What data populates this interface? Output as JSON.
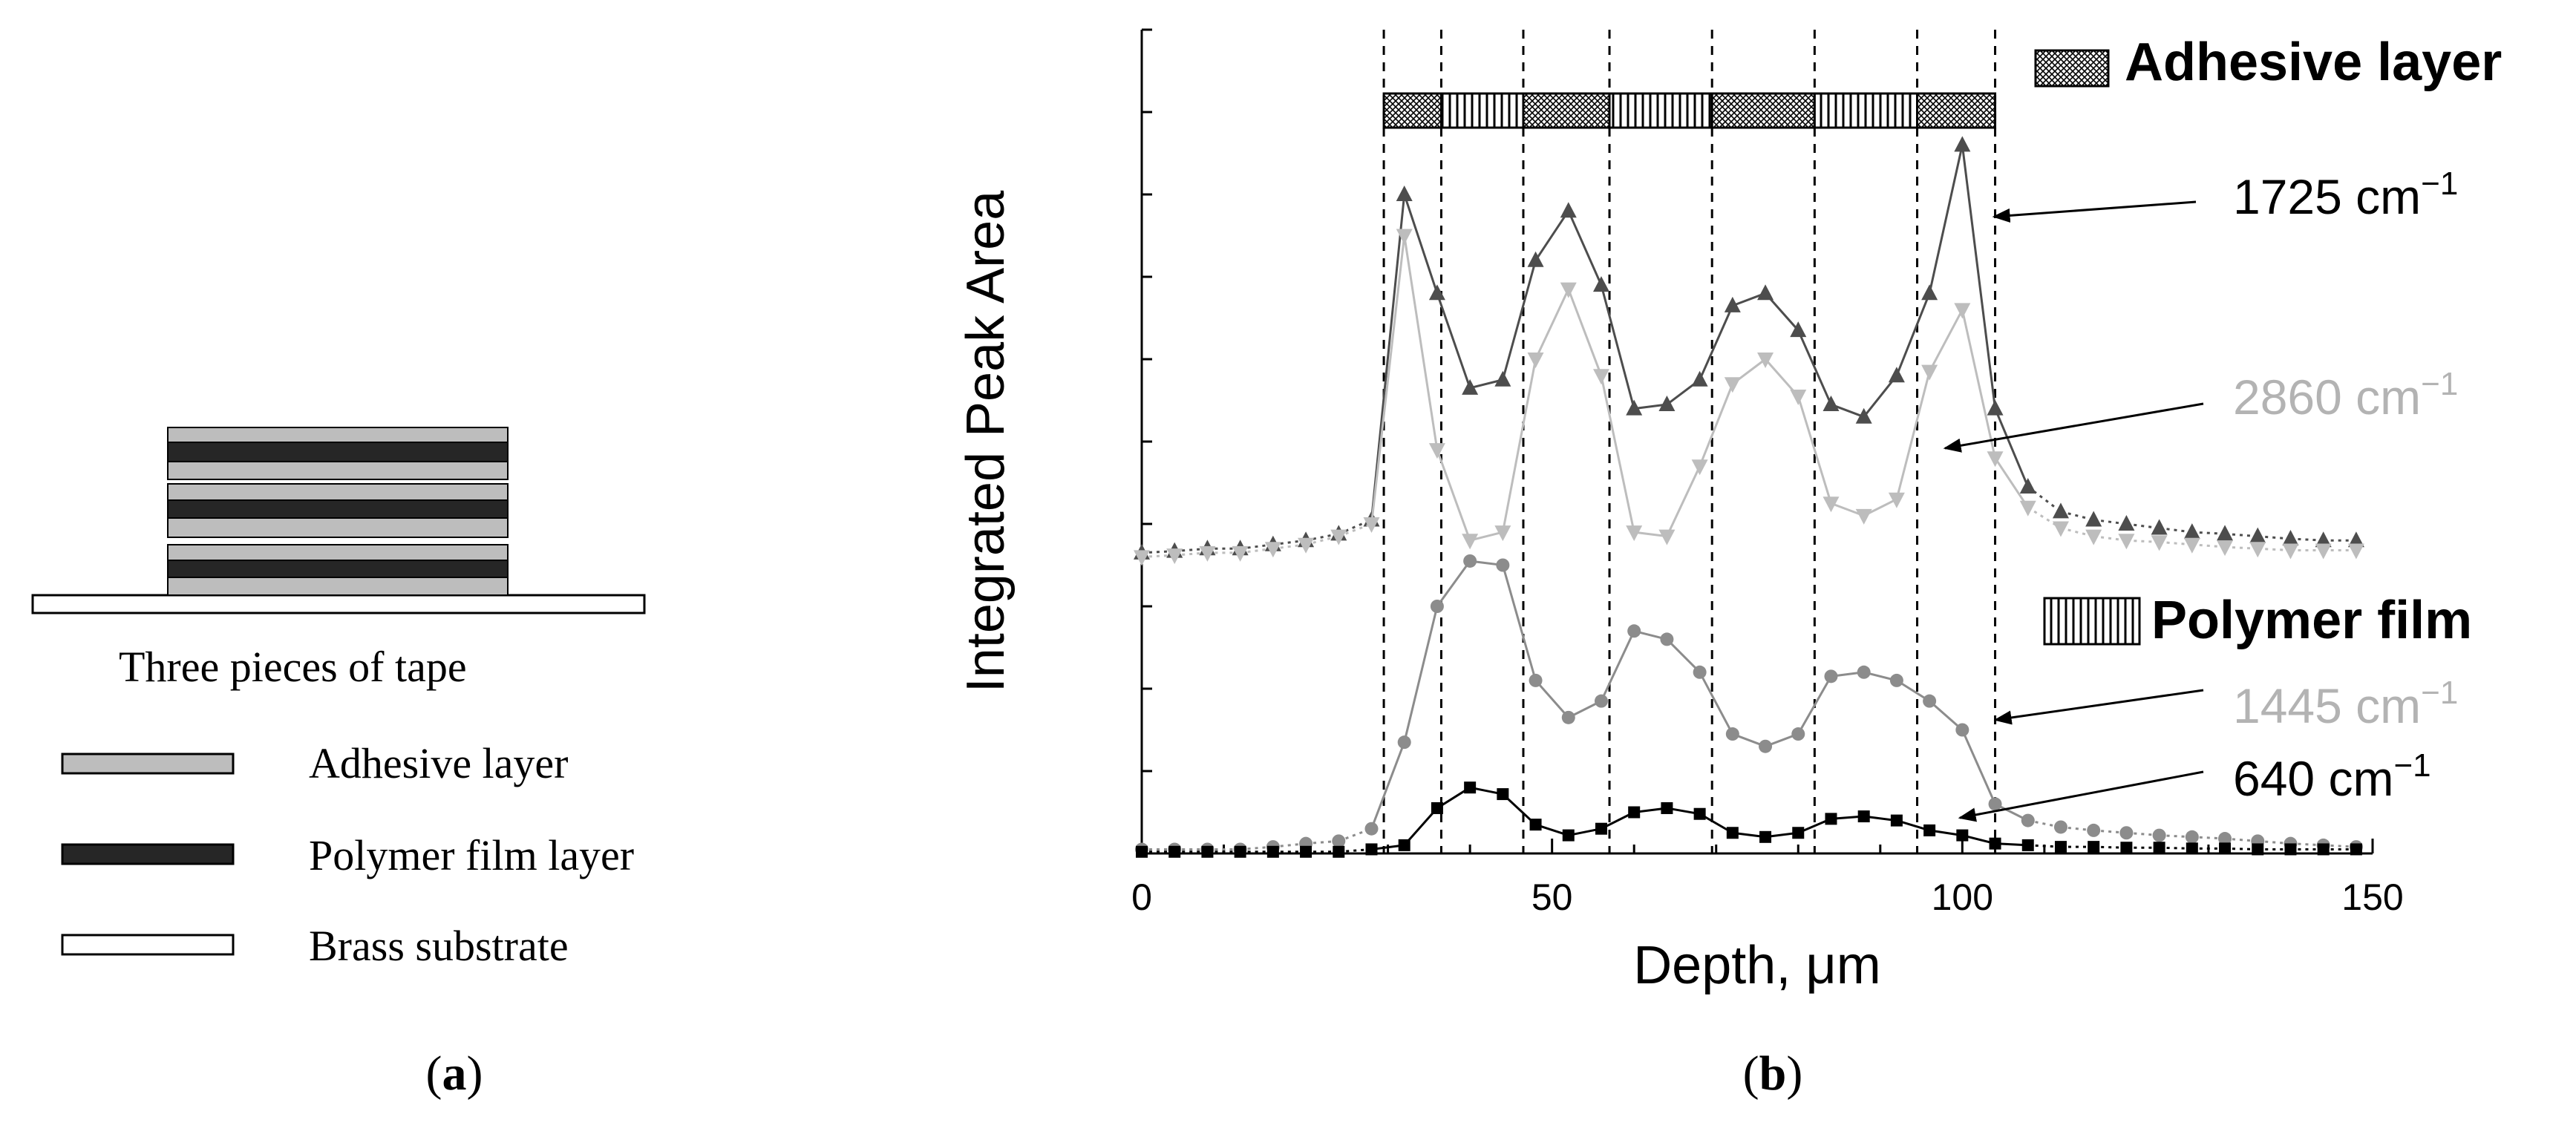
{
  "panel_a": {
    "caption": "Three pieces of tape",
    "legend": [
      {
        "label": "Adhesive layer",
        "fill": "#bdbdbd"
      },
      {
        "label": "Polymer film layer",
        "fill": "#262626"
      },
      {
        "label": "Brass substrate",
        "fill": "#ffffff"
      }
    ],
    "tag": "a"
  },
  "panel_b": {
    "tag": "b",
    "layer_legend": {
      "adhesive": "Adhesive layer",
      "polymer": "Polymer film"
    },
    "peak_labels": {
      "p1725": {
        "main": "1725 cm",
        "sup": "−1",
        "color": "#000000"
      },
      "p2860": {
        "main": "2860 cm",
        "sup": "−1",
        "color": "#b3b3b3"
      },
      "p1445": {
        "main": "1445 cm",
        "sup": "−1",
        "color": "#b3b3b3"
      },
      "p640": {
        "main": "640 cm",
        "sup": "−1",
        "color": "#000000"
      }
    }
  },
  "chart_data": {
    "type": "line",
    "xlabel": "Depth, μm",
    "ylabel": "Integrated Peak Area",
    "xlim": [
      0,
      150
    ],
    "ylim": [
      0,
      10
    ],
    "xticks": [
      0,
      50,
      100,
      150
    ],
    "yticks_minor_count": 10,
    "boundaries": [
      29.5,
      36.5,
      46.5,
      57,
      69.5,
      82,
      94.5,
      104
    ],
    "layer_bar": [
      {
        "type": "adhesive",
        "from": 29.5,
        "to": 36.5
      },
      {
        "type": "polymer",
        "from": 36.5,
        "to": 46.5
      },
      {
        "type": "adhesive",
        "from": 46.5,
        "to": 57
      },
      {
        "type": "polymer",
        "from": 57,
        "to": 69.5
      },
      {
        "type": "adhesive",
        "from": 69.5,
        "to": 82
      },
      {
        "type": "polymer",
        "from": 82,
        "to": 94.5
      },
      {
        "type": "adhesive",
        "from": 94.5,
        "to": 104
      }
    ],
    "series": [
      {
        "name": "1725 cm-1",
        "marker": "triangle-up",
        "color": "#4d4d4d",
        "x": [
          0,
          4,
          8,
          12,
          16,
          20,
          24,
          28,
          32,
          36,
          40,
          44,
          48,
          52,
          56,
          60,
          64,
          68,
          72,
          76,
          80,
          84,
          88,
          92,
          96,
          100,
          104,
          108,
          112,
          116,
          120,
          124,
          128,
          132,
          136,
          140,
          144,
          148
        ],
        "values": [
          3.65,
          3.67,
          3.7,
          3.7,
          3.75,
          3.8,
          3.88,
          4.05,
          8.0,
          6.8,
          5.65,
          5.75,
          7.2,
          7.8,
          6.9,
          5.4,
          5.45,
          5.75,
          6.65,
          6.8,
          6.35,
          5.45,
          5.3,
          5.8,
          6.8,
          8.6,
          5.4,
          4.45,
          4.15,
          4.05,
          4.0,
          3.95,
          3.9,
          3.88,
          3.85,
          3.82,
          3.8,
          3.8
        ]
      },
      {
        "name": "2860 cm-1",
        "marker": "triangle-down",
        "color": "#bdbdbd",
        "x": [
          0,
          4,
          8,
          12,
          16,
          20,
          24,
          28,
          32,
          36,
          40,
          44,
          48,
          52,
          56,
          60,
          64,
          68,
          72,
          76,
          80,
          84,
          88,
          92,
          96,
          100,
          104,
          108,
          112,
          116,
          120,
          124,
          128,
          132,
          136,
          140,
          144,
          148
        ],
        "values": [
          3.6,
          3.62,
          3.65,
          3.65,
          3.7,
          3.75,
          3.85,
          4.0,
          7.5,
          4.9,
          3.8,
          3.9,
          6.0,
          6.85,
          5.8,
          3.9,
          3.85,
          4.7,
          5.7,
          6.0,
          5.55,
          4.25,
          4.1,
          4.3,
          5.85,
          6.6,
          4.8,
          4.2,
          3.95,
          3.85,
          3.8,
          3.78,
          3.75,
          3.72,
          3.7,
          3.68,
          3.68,
          3.68
        ]
      },
      {
        "name": "1445 cm-1",
        "marker": "circle",
        "color": "#8c8c8c",
        "x": [
          0,
          4,
          8,
          12,
          16,
          20,
          24,
          28,
          32,
          36,
          40,
          44,
          48,
          52,
          56,
          60,
          64,
          68,
          72,
          76,
          80,
          84,
          88,
          92,
          96,
          100,
          104,
          108,
          112,
          116,
          120,
          124,
          128,
          132,
          136,
          140,
          144,
          148
        ],
        "values": [
          0.05,
          0.05,
          0.05,
          0.05,
          0.08,
          0.12,
          0.15,
          0.3,
          1.35,
          3.0,
          3.55,
          3.5,
          2.1,
          1.65,
          1.85,
          2.7,
          2.6,
          2.2,
          1.45,
          1.3,
          1.45,
          2.15,
          2.2,
          2.1,
          1.85,
          1.5,
          0.6,
          0.4,
          0.32,
          0.28,
          0.25,
          0.22,
          0.2,
          0.18,
          0.15,
          0.12,
          0.1,
          0.08
        ]
      },
      {
        "name": "640 cm-1",
        "marker": "square",
        "color": "#000000",
        "x": [
          0,
          4,
          8,
          12,
          16,
          20,
          24,
          28,
          32,
          36,
          40,
          44,
          48,
          52,
          56,
          60,
          64,
          68,
          72,
          76,
          80,
          84,
          88,
          92,
          96,
          100,
          104,
          108,
          112,
          116,
          120,
          124,
          128,
          132,
          136,
          140,
          144,
          148
        ],
        "values": [
          0.02,
          0.02,
          0.02,
          0.02,
          0.02,
          0.02,
          0.02,
          0.05,
          0.1,
          0.55,
          0.8,
          0.72,
          0.35,
          0.22,
          0.3,
          0.5,
          0.55,
          0.48,
          0.25,
          0.2,
          0.25,
          0.42,
          0.45,
          0.4,
          0.28,
          0.22,
          0.12,
          0.1,
          0.08,
          0.08,
          0.07,
          0.07,
          0.06,
          0.06,
          0.05,
          0.05,
          0.05,
          0.05
        ]
      }
    ]
  }
}
